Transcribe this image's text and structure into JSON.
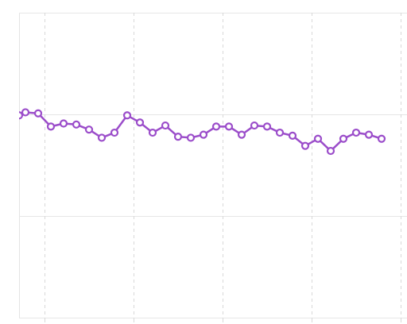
{
  "chart_data": {
    "type": "line",
    "x": [
      0.5,
      1,
      2,
      3,
      4,
      5,
      6,
      7,
      8,
      9,
      10,
      11,
      12,
      13,
      14,
      15,
      16,
      17,
      18,
      19,
      20,
      21,
      22,
      23,
      24,
      25,
      26,
      27,
      28,
      29
    ],
    "series": [
      {
        "color": "#9b4dca",
        "values": [
          1.99,
          2.02,
          2.01,
          1.88,
          1.91,
          1.9,
          1.85,
          1.77,
          1.82,
          1.99,
          1.92,
          1.82,
          1.89,
          1.78,
          1.77,
          1.8,
          1.88,
          1.88,
          1.8,
          1.89,
          1.88,
          1.82,
          1.79,
          1.69,
          1.76,
          1.64,
          1.76,
          1.82,
          1.8,
          1.76
        ]
      }
    ],
    "xlim": [
      0.5,
      31
    ],
    "xticks": [
      2.5,
      9.5,
      16.5,
      23.5,
      30.5
    ],
    "ylim": [
      0,
      3
    ],
    "yticks": [
      0,
      1,
      2,
      3
    ],
    "grid": true
  }
}
